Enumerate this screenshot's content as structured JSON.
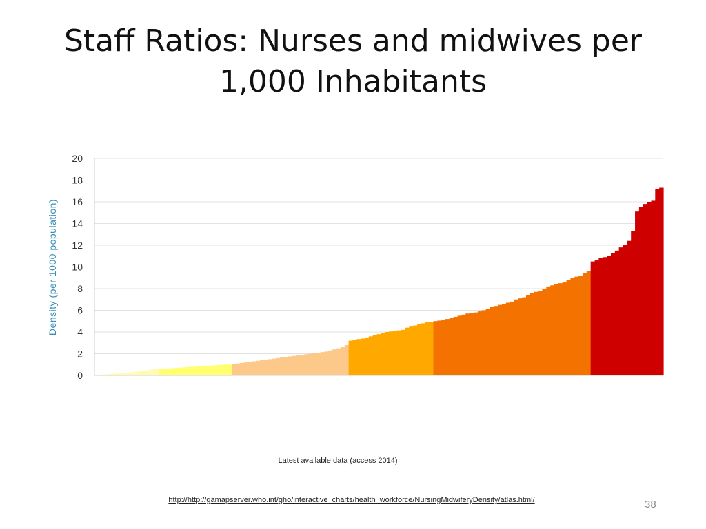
{
  "slide": {
    "title": "Staff Ratios: Nurses and midwives per 1,000 Inhabitants",
    "caption": "Latest available data (access 2014)",
    "source_url": "http://http://gamapserver.who.int/gho/interactive_charts/health_workforce/NursingMidwiferyDensity/atlas.html/",
    "page_number": "38"
  },
  "chart_data": {
    "type": "bar",
    "title": "",
    "xlabel": "",
    "ylabel": "Density (per 1000 population)",
    "ylim": [
      0,
      20
    ],
    "yticks": [
      "0",
      "2",
      "4",
      "6",
      "8",
      "10",
      "12",
      "14",
      "16",
      "18",
      "20"
    ],
    "grid": true,
    "legend": "none",
    "bin_colors": [
      "#fffbb0",
      "#ffff70",
      "#fcc98a",
      "#ffa800",
      "#f47200",
      "#cf0000"
    ],
    "note": "Countries sorted ascending; coloured by density band",
    "series": [
      {
        "name": "",
        "color": "#fffbb0",
        "values": [
          0.05,
          0.08,
          0.1,
          0.12,
          0.15,
          0.18,
          0.2,
          0.22,
          0.25,
          0.3,
          0.35,
          0.4,
          0.45,
          0.5,
          0.55,
          0.58
        ]
      },
      {
        "name": "",
        "color": "#ffff70",
        "values": [
          0.6,
          0.62,
          0.65,
          0.68,
          0.7,
          0.72,
          0.75,
          0.78,
          0.8,
          0.82,
          0.85,
          0.88,
          0.9,
          0.92,
          0.95,
          0.97,
          1.0,
          1.0
        ]
      },
      {
        "name": "",
        "color": "#fcc98a",
        "values": [
          1.05,
          1.1,
          1.15,
          1.2,
          1.25,
          1.3,
          1.35,
          1.4,
          1.45,
          1.5,
          1.55,
          1.6,
          1.65,
          1.7,
          1.75,
          1.8,
          1.85,
          1.9,
          1.95,
          2.0,
          2.05,
          2.1,
          2.15,
          2.2,
          2.3,
          2.4,
          2.5,
          2.6,
          2.8
        ]
      },
      {
        "name": "",
        "color": "#ffa800",
        "values": [
          3.2,
          3.3,
          3.35,
          3.4,
          3.5,
          3.6,
          3.7,
          3.8,
          3.9,
          4.0,
          4.05,
          4.1,
          4.15,
          4.2,
          4.4,
          4.5,
          4.6,
          4.7,
          4.8,
          4.9,
          4.95
        ]
      },
      {
        "name": "",
        "color": "#f47200",
        "values": [
          5.0,
          5.05,
          5.1,
          5.2,
          5.3,
          5.4,
          5.5,
          5.6,
          5.7,
          5.75,
          5.8,
          5.9,
          6.0,
          6.1,
          6.3,
          6.4,
          6.5,
          6.6,
          6.7,
          6.8,
          7.0,
          7.1,
          7.2,
          7.4,
          7.6,
          7.7,
          7.8,
          8.0,
          8.2,
          8.3,
          8.4,
          8.5,
          8.6,
          8.8,
          9.0,
          9.1,
          9.2,
          9.4,
          9.6
        ]
      },
      {
        "name": "",
        "color": "#cf0000",
        "values": [
          10.5,
          10.6,
          10.8,
          10.9,
          11.0,
          11.3,
          11.5,
          11.8,
          12.0,
          12.4,
          13.3,
          15.1,
          15.5,
          15.8,
          16.0,
          16.1,
          17.2,
          17.3
        ]
      }
    ]
  }
}
